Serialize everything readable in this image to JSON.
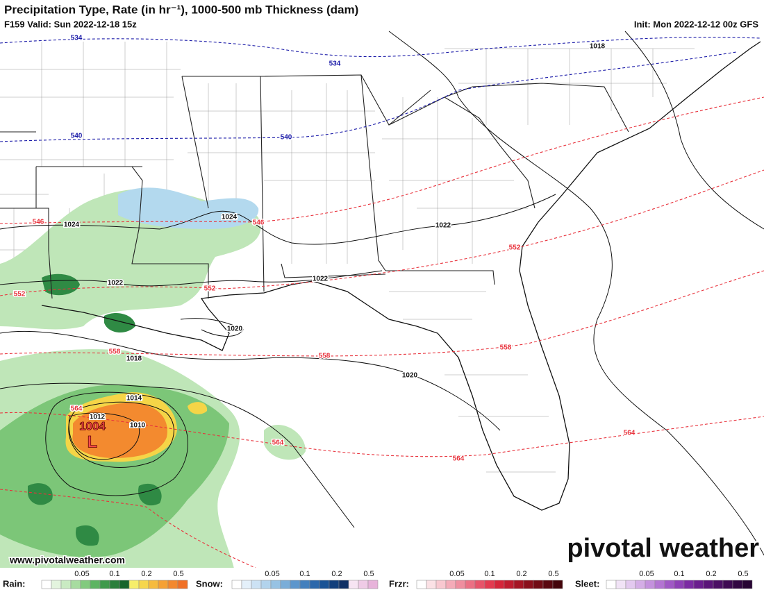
{
  "header": {
    "title": "Precipitation Type, Rate (in hr⁻¹), 1000-500 mb Thickness (dam)",
    "valid": "F159 Valid: Sun 2022-12-18 15z",
    "init": "Init: Mon 2022-12-12 00z GFS"
  },
  "thickness_contours": [
    {
      "label": "534",
      "color": "#1a1aa8"
    },
    {
      "label": "534",
      "color": "#1a1aa8"
    },
    {
      "label": "540",
      "color": "#1a1aa8"
    },
    {
      "label": "540",
      "color": "#1a1aa8"
    },
    {
      "label": "546",
      "color": "#e8323c"
    },
    {
      "label": "546",
      "color": "#e8323c"
    },
    {
      "label": "552",
      "color": "#e8323c"
    },
    {
      "label": "552",
      "color": "#e8323c"
    },
    {
      "label": "552",
      "color": "#e8323c"
    },
    {
      "label": "558",
      "color": "#e8323c"
    },
    {
      "label": "558",
      "color": "#e8323c"
    },
    {
      "label": "558",
      "color": "#e8323c"
    },
    {
      "label": "564",
      "color": "#e8323c"
    },
    {
      "label": "564",
      "color": "#e8323c"
    },
    {
      "label": "564",
      "color": "#e8323c"
    },
    {
      "label": "564",
      "color": "#e8323c"
    }
  ],
  "pressure_labels": [
    "1018",
    "1024",
    "1024",
    "1022",
    "1022",
    "1022",
    "1020",
    "1018",
    "1020",
    "1014",
    "1012",
    "1010"
  ],
  "low_center": {
    "pressure": "1004",
    "symbol": "L"
  },
  "watermark": "www.pivotalweather.com",
  "logo": "pivotal weather",
  "legend": [
    {
      "label": "Rain:",
      "ticks": [
        "0.05",
        "0.1",
        "0.2",
        "0.5"
      ],
      "colors": [
        "#ffffff",
        "#e3f4de",
        "#c9eac2",
        "#a7dca0",
        "#82ca7e",
        "#5db462",
        "#3f9a4c",
        "#2a7f3b",
        "#17652c",
        "#f6ee6a",
        "#f6d64c",
        "#f6bb3e",
        "#f5a134",
        "#f3882d",
        "#f07026"
      ]
    },
    {
      "label": "Snow:",
      "ticks": [
        "0.05",
        "0.1",
        "0.2",
        "0.5"
      ],
      "colors": [
        "#ffffff",
        "#e4f0fa",
        "#cce2f4",
        "#b2d3ec",
        "#97c2e3",
        "#7aadd8",
        "#5c96cc",
        "#437fbd",
        "#2c68ab",
        "#1a5396",
        "#123f7c",
        "#0f3066",
        "#f7e4f3",
        "#efcbe6",
        "#e7b3da"
      ]
    },
    {
      "label": "Frzr:",
      "ticks": [
        "0.05",
        "0.1",
        "0.2",
        "0.5"
      ],
      "colors": [
        "#ffffff",
        "#fbe1e5",
        "#f8c8d0",
        "#f4abb8",
        "#ef8e9f",
        "#eb7084",
        "#e7546a",
        "#e33a50",
        "#d5253a",
        "#bf1c2f",
        "#a51524",
        "#8a101c",
        "#710c15",
        "#5a0810",
        "#44050b"
      ]
    },
    {
      "label": "Sleet:",
      "ticks": [
        "0.05",
        "0.1",
        "0.2",
        "0.5"
      ],
      "colors": [
        "#ffffff",
        "#f1e3f6",
        "#e3c9ef",
        "#d4ade6",
        "#c491dd",
        "#b374d2",
        "#a058c5",
        "#8e40b6",
        "#7b2ba3",
        "#6a1e8e",
        "#5a1578",
        "#4b0f64",
        "#3e0a52",
        "#320742",
        "#280534"
      ]
    }
  ]
}
